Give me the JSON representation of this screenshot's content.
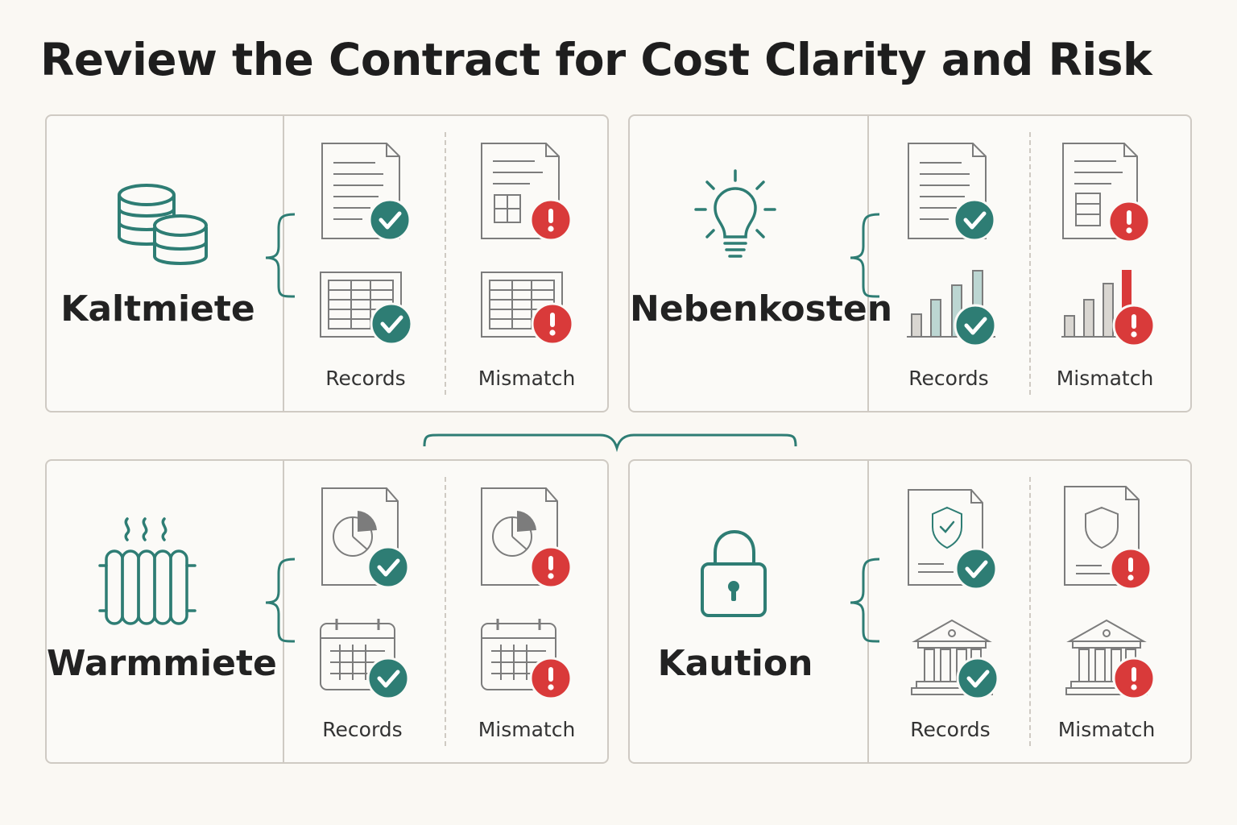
{
  "title": "Review the Contract for Cost Clarity and Risk",
  "colors": {
    "teal": "#2e7d74",
    "red": "#d93a3a",
    "gray": "#8a8a8a",
    "border": "#cfcac3",
    "background": "#faf8f3"
  },
  "cards": [
    {
      "label": "Kaltmiete",
      "icon": "coins-icon",
      "records_label": "Records",
      "mismatch_label": "Mismatch"
    },
    {
      "label": "Nebenkosten",
      "icon": "lightbulb-icon",
      "records_label": "Records",
      "mismatch_label": "Mismatch"
    },
    {
      "label": "Warmmiete",
      "icon": "radiator-icon",
      "records_label": "Records",
      "mismatch_label": "Mismatch"
    },
    {
      "label": "Kaution",
      "icon": "padlock-icon",
      "records_label": "Records",
      "mismatch_label": "Mismatch"
    }
  ]
}
